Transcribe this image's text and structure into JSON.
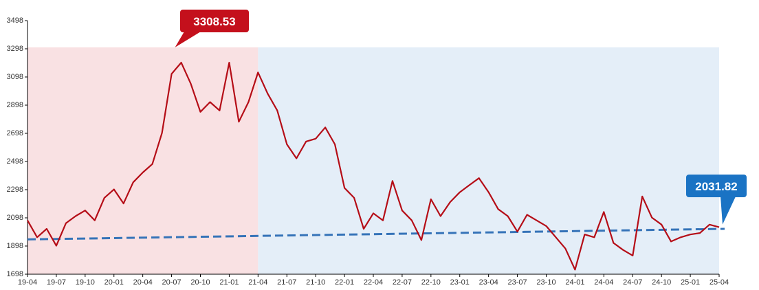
{
  "colors": {
    "line": "#b50d17",
    "trend": "#3573b8",
    "region_left": "#f9e1e3",
    "region_right": "#e4eef8",
    "max_callout": "#c4101c",
    "last_callout": "#1a73c4",
    "axis": "#000000"
  },
  "chart_data": {
    "type": "line",
    "title": "",
    "xlabel": "",
    "ylabel": "",
    "ylim": [
      1698,
      3498
    ],
    "y_ticks": [
      1698,
      1898,
      2098,
      2298,
      2498,
      2698,
      2898,
      3098,
      3298,
      3498
    ],
    "y_tick_labels": [
      "1698",
      "1898",
      "2098",
      "2298",
      "2498",
      "2698",
      "2898",
      "3098",
      "3298",
      "3498"
    ],
    "x_tick_labels": [
      "19-04",
      "19-07",
      "19-10",
      "20-01",
      "20-04",
      "20-07",
      "20-10",
      "21-01",
      "21-04",
      "21-07",
      "21-10",
      "22-01",
      "22-04",
      "22-07",
      "22-10",
      "23-01",
      "23-04",
      "23-07",
      "23-10",
      "24-01",
      "24-04",
      "24-07",
      "24-10",
      "25-01",
      "25-04"
    ],
    "regions": [
      {
        "from": "19-04",
        "to": "21-04",
        "y_top": 3308.53,
        "color": "#f9e1e3"
      },
      {
        "from": "21-04",
        "to": "25-04",
        "y_top": 3308.53,
        "color": "#e4eef8"
      }
    ],
    "series": [
      {
        "x": [
          "19-04",
          "19-05",
          "19-06",
          "19-07",
          "19-08",
          "19-09",
          "19-10",
          "19-11",
          "19-12",
          "20-01",
          "20-02",
          "20-03",
          "20-04",
          "20-05",
          "20-06",
          "20-07",
          "20-08",
          "20-09",
          "20-10",
          "20-11",
          "20-12",
          "21-01",
          "21-02",
          "21-03",
          "21-04",
          "21-05",
          "21-06",
          "21-07",
          "21-08",
          "21-09",
          "21-10",
          "21-11",
          "21-12",
          "22-01",
          "22-02",
          "22-03",
          "22-04",
          "22-05",
          "22-06",
          "22-07",
          "22-08",
          "22-09",
          "22-10",
          "22-11",
          "22-12",
          "23-01",
          "23-02",
          "23-03",
          "23-04",
          "23-05",
          "23-06",
          "23-07",
          "23-08",
          "23-09",
          "23-10",
          "23-11",
          "23-12",
          "24-01",
          "24-02",
          "24-03",
          "24-04",
          "24-05",
          "24-06",
          "24-07",
          "24-08",
          "24-09",
          "24-10",
          "24-11",
          "24-12",
          "25-01",
          "25-02",
          "25-03",
          "25-04"
        ],
        "values": [
          2080,
          1960,
          2020,
          1900,
          2060,
          2110,
          2150,
          2080,
          2240,
          2300,
          2200,
          2350,
          2420,
          2480,
          2700,
          3120,
          3200,
          3050,
          2850,
          2920,
          2860,
          3200,
          2780,
          2920,
          3130,
          2980,
          2860,
          2620,
          2520,
          2640,
          2660,
          2740,
          2620,
          2310,
          2240,
          2020,
          2130,
          2080,
          2360,
          2150,
          2080,
          1940,
          2230,
          2110,
          2210,
          2280,
          2330,
          2380,
          2280,
          2160,
          2110,
          2000,
          2120,
          2080,
          2040,
          1960,
          1880,
          1730,
          1980,
          1960,
          2140,
          1920,
          1870,
          1830,
          2250,
          2100,
          2050,
          1930,
          1960,
          1980,
          1990,
          2050,
          2031.82
        ]
      },
      {
        "x": [
          "19-04",
          "25-04"
        ],
        "values": [
          1945,
          2020
        ]
      }
    ],
    "annotations": [
      {
        "label": "3308.53",
        "x": "20-07",
        "y": 3308.53,
        "color": "#c4101c"
      },
      {
        "label": "2031.82",
        "x": "25-04",
        "y": 2031.82,
        "color": "#1a73c4"
      }
    ],
    "grid": false,
    "legend": "none"
  }
}
